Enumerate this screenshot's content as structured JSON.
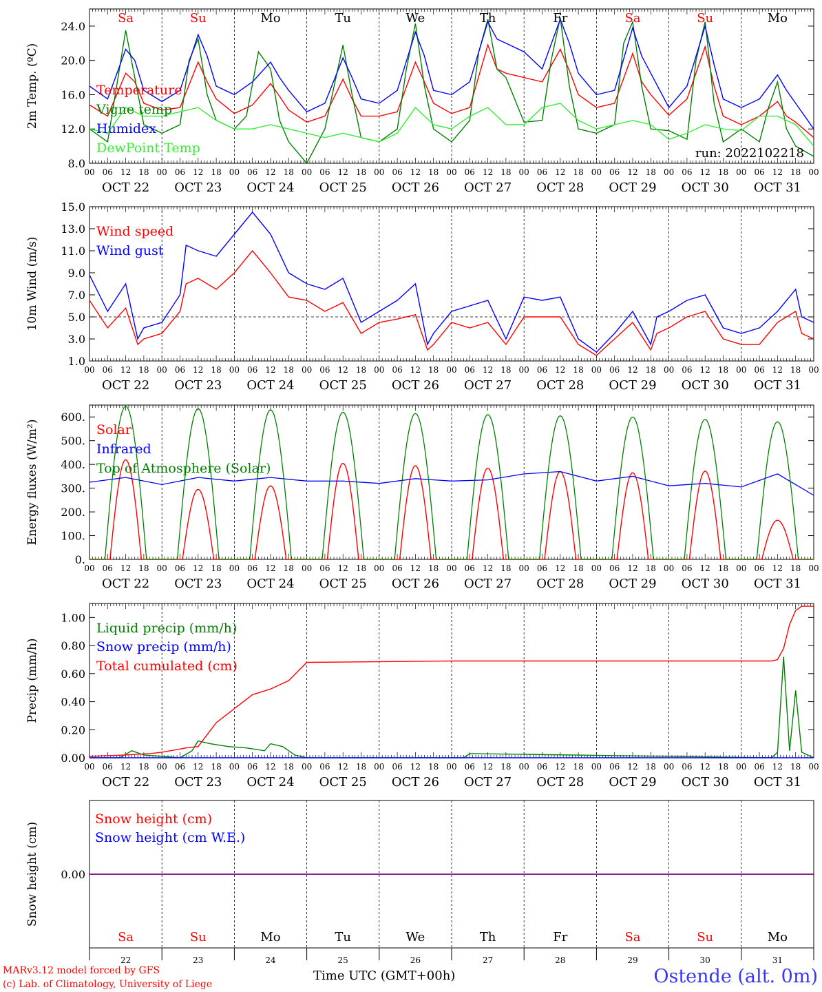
{
  "footer": {
    "model_line": "MARv3.12 model forced by GFS",
    "credit_line": "(c) Lab. of Climatology, University of Liege",
    "time_label": "Time UTC (GMT+00h)",
    "station": "Ostende (alt. 0m)"
  },
  "colors": {
    "red": "#ff0000",
    "green": "#008000",
    "blue": "#0000ff",
    "lightgreen": "#33ee33",
    "purple": "#800080"
  },
  "days": [
    "Sa",
    "Su",
    "Mo",
    "Tu",
    "We",
    "Th",
    "Fr",
    "Sa",
    "Su",
    "Mo"
  ],
  "weekend_days": [
    0,
    1,
    7,
    8
  ],
  "dates": [
    "OCT 22",
    "OCT 23",
    "OCT 24",
    "OCT 25",
    "OCT 26",
    "OCT 27",
    "OCT 28",
    "OCT 29",
    "OCT 30",
    "OCT 31"
  ],
  "day_numbers": [
    "22",
    "23",
    "24",
    "25",
    "26",
    "27",
    "28",
    "29",
    "30",
    "31"
  ],
  "hour_labels": [
    "00",
    "06",
    "12",
    "18"
  ],
  "chart_data": [
    {
      "type": "line",
      "ylabel": "2m Temp. (ºC)",
      "ylim": [
        8,
        26
      ],
      "yticks": [
        "8.0",
        "12.0",
        "16.0",
        "20.0",
        "24.0"
      ],
      "annotation": "run: 2022102218",
      "x_unit": "hours since 2022-10-22 00 UTC",
      "series": [
        {
          "name": "Temperature",
          "color": "#ff0000",
          "x": [
            0,
            6,
            12,
            15,
            18,
            24,
            30,
            36,
            39,
            42,
            48,
            54,
            60,
            63,
            66,
            72,
            78,
            84,
            87,
            90,
            96,
            102,
            108,
            111,
            114,
            120,
            126,
            132,
            135,
            138,
            144,
            150,
            156,
            159,
            162,
            168,
            174,
            180,
            183,
            186,
            192,
            198,
            204,
            207,
            210,
            216,
            222,
            228,
            231,
            234,
            240
          ],
          "y": [
            14.8,
            13.5,
            18.5,
            17.5,
            15.0,
            14.2,
            14.5,
            19.8,
            17.5,
            15.5,
            13.8,
            14.8,
            17.3,
            15.8,
            14.2,
            12.8,
            13.5,
            17.8,
            15.5,
            13.5,
            13.5,
            14.0,
            19.8,
            17.5,
            15.0,
            13.8,
            14.5,
            21.8,
            19.0,
            18.5,
            18.0,
            17.5,
            21.3,
            18.8,
            16.0,
            14.5,
            15.0,
            20.8,
            17.5,
            16.0,
            13.6,
            15.5,
            21.6,
            17.0,
            13.5,
            12.5,
            13.5,
            15.2,
            13.5,
            12.8,
            11.0
          ]
        },
        {
          "name": "Vigne temp",
          "color": "#008000",
          "x": [
            0,
            6,
            9,
            12,
            15,
            18,
            24,
            30,
            33,
            36,
            39,
            42,
            48,
            52,
            56,
            60,
            63,
            66,
            72,
            78,
            84,
            87,
            90,
            96,
            102,
            105,
            108,
            111,
            114,
            120,
            126,
            129,
            132,
            135,
            138,
            144,
            150,
            153,
            156,
            159,
            162,
            168,
            174,
            177,
            180,
            183,
            186,
            192,
            198,
            201,
            204,
            207,
            210,
            216,
            222,
            225,
            228,
            231,
            234,
            240
          ],
          "y": [
            12.0,
            10.5,
            17.0,
            23.5,
            18.0,
            12.5,
            11.5,
            12.5,
            20.0,
            22.5,
            16.0,
            13.0,
            12.0,
            13.5,
            21.0,
            19.0,
            13.0,
            10.5,
            8.0,
            12.0,
            21.8,
            16.0,
            11.0,
            10.5,
            12.0,
            19.0,
            24.3,
            17.0,
            12.0,
            10.5,
            13.0,
            21.0,
            24.8,
            19.0,
            18.0,
            12.8,
            13.0,
            20.0,
            25.0,
            17.0,
            12.0,
            11.5,
            12.5,
            22.0,
            24.5,
            17.0,
            12.0,
            11.8,
            10.8,
            20.0,
            24.5,
            15.0,
            10.5,
            12.0,
            10.5,
            14.5,
            17.5,
            12.0,
            10.0,
            8.8
          ]
        },
        {
          "name": "Humidex",
          "color": "#0000ff",
          "x": [
            0,
            6,
            12,
            15,
            18,
            24,
            30,
            36,
            39,
            42,
            48,
            54,
            60,
            63,
            66,
            72,
            78,
            84,
            87,
            90,
            96,
            102,
            108,
            111,
            114,
            120,
            126,
            132,
            135,
            138,
            144,
            150,
            156,
            159,
            162,
            168,
            174,
            180,
            183,
            186,
            192,
            198,
            204,
            207,
            210,
            216,
            222,
            228,
            231,
            234,
            240
          ],
          "y": [
            17.0,
            15.5,
            21.3,
            20.0,
            16.5,
            15.2,
            16.5,
            23.0,
            20.5,
            17.0,
            16.0,
            17.5,
            19.8,
            18.0,
            16.5,
            14.0,
            15.0,
            20.3,
            18.0,
            15.5,
            15.0,
            16.5,
            23.3,
            20.5,
            16.5,
            16.0,
            17.5,
            24.5,
            22.5,
            22.0,
            21.0,
            19.0,
            24.8,
            22.0,
            18.5,
            16.0,
            16.5,
            23.8,
            20.5,
            18.5,
            14.5,
            17.0,
            24.0,
            19.5,
            15.5,
            14.5,
            15.5,
            18.3,
            16.5,
            15.0,
            12.0
          ]
        },
        {
          "name": "DewPoint Temp",
          "color": "#33ee33",
          "x": [
            0,
            6,
            12,
            18,
            24,
            30,
            36,
            42,
            48,
            54,
            60,
            66,
            72,
            78,
            84,
            90,
            96,
            102,
            108,
            114,
            120,
            126,
            132,
            138,
            144,
            150,
            156,
            162,
            168,
            174,
            180,
            186,
            192,
            198,
            204,
            210,
            216,
            222,
            228,
            234,
            240
          ],
          "y": [
            12.0,
            11.5,
            14.5,
            13.5,
            13.5,
            14.0,
            14.5,
            13.0,
            12.0,
            12.0,
            12.5,
            12.0,
            11.5,
            11.0,
            11.5,
            11.0,
            10.5,
            11.5,
            14.5,
            12.5,
            12.0,
            13.5,
            14.5,
            12.5,
            12.5,
            14.5,
            15.0,
            13.0,
            12.0,
            12.5,
            13.0,
            12.5,
            10.8,
            11.5,
            12.5,
            12.0,
            11.8,
            13.5,
            13.5,
            12.5,
            10.0
          ]
        }
      ]
    },
    {
      "type": "line",
      "ylabel": "10m Wind (m/s)",
      "ylim": [
        1,
        15
      ],
      "yticks": [
        "1.0",
        "3.0",
        "5.0",
        "7.0",
        "9.0",
        "11.0",
        "13.0",
        "15.0"
      ],
      "reference_line": 5.0,
      "x_unit": "hours since 2022-10-22 00 UTC",
      "series": [
        {
          "name": "Wind speed",
          "color": "#ff0000",
          "x": [
            0,
            6,
            12,
            16,
            18,
            24,
            30,
            32,
            36,
            42,
            48,
            54,
            60,
            66,
            72,
            78,
            84,
            90,
            96,
            102,
            108,
            112,
            114,
            120,
            126,
            132,
            138,
            144,
            150,
            156,
            162,
            168,
            174,
            180,
            186,
            188,
            192,
            198,
            204,
            210,
            216,
            222,
            228,
            234,
            236,
            240
          ],
          "y": [
            6.5,
            4.0,
            5.8,
            2.5,
            3.0,
            3.5,
            5.5,
            8.0,
            8.5,
            7.5,
            9.0,
            11.0,
            9.0,
            6.8,
            6.5,
            5.5,
            6.3,
            3.5,
            4.5,
            4.8,
            5.2,
            2.0,
            2.5,
            4.5,
            4.0,
            4.5,
            2.5,
            5.0,
            5.0,
            5.0,
            2.5,
            1.5,
            3.0,
            4.5,
            2.0,
            3.5,
            4.0,
            5.0,
            5.5,
            3.0,
            2.5,
            2.5,
            4.5,
            5.5,
            3.5,
            3.0
          ]
        },
        {
          "name": "Wind gust",
          "color": "#0000ff",
          "x": [
            0,
            6,
            12,
            16,
            18,
            24,
            30,
            32,
            36,
            42,
            48,
            54,
            60,
            66,
            72,
            78,
            84,
            90,
            96,
            102,
            108,
            112,
            114,
            120,
            126,
            132,
            138,
            144,
            150,
            156,
            162,
            168,
            174,
            180,
            186,
            188,
            192,
            198,
            204,
            210,
            216,
            222,
            228,
            234,
            236,
            240
          ],
          "y": [
            8.8,
            5.5,
            8.0,
            3.0,
            4.0,
            4.5,
            7.0,
            11.5,
            11.0,
            10.5,
            12.5,
            14.5,
            12.5,
            9.0,
            8.0,
            7.5,
            8.5,
            4.5,
            5.5,
            6.5,
            8.0,
            2.5,
            3.5,
            5.5,
            6.0,
            6.5,
            3.0,
            6.8,
            6.5,
            6.8,
            3.0,
            1.8,
            3.5,
            5.5,
            2.5,
            5.0,
            5.5,
            6.5,
            7.0,
            4.0,
            3.5,
            4.0,
            5.5,
            7.5,
            5.0,
            4.5
          ]
        }
      ]
    },
    {
      "type": "line",
      "ylabel": "Energy fluxes (W/m²)",
      "ylim": [
        0,
        650
      ],
      "yticks": [
        "0.",
        "100.",
        "200.",
        "300.",
        "400.",
        "500.",
        "600."
      ],
      "x_unit": "hours since 2022-10-22 00 UTC",
      "daily_peak_hour": 12,
      "series": [
        {
          "name": "Solar",
          "color": "#ff0000",
          "daily_peaks": [
            420,
            295,
            310,
            405,
            395,
            385,
            370,
            365,
            372,
            165
          ]
        },
        {
          "name": "Infrared",
          "color": "#0000ff",
          "x": [
            0,
            12,
            24,
            36,
            48,
            60,
            72,
            84,
            96,
            108,
            120,
            132,
            144,
            156,
            168,
            180,
            192,
            204,
            216,
            228,
            240
          ],
          "y": [
            325,
            345,
            315,
            345,
            330,
            345,
            330,
            330,
            320,
            340,
            330,
            335,
            360,
            370,
            330,
            350,
            310,
            320,
            305,
            360,
            270
          ]
        },
        {
          "name": "Top of Atmosphere (Solar)",
          "color": "#008000",
          "daily_peaks": [
            645,
            635,
            630,
            620,
            615,
            610,
            605,
            600,
            590,
            580
          ]
        }
      ]
    },
    {
      "type": "line",
      "ylabel": "Precip (mm/h)",
      "ylim": [
        0,
        1.1
      ],
      "yticks": [
        "0.00",
        "0.20",
        "0.40",
        "0.60",
        "0.80",
        "1.00"
      ],
      "x_unit": "hours since 2022-10-22 00 UTC",
      "series": [
        {
          "name": "Liquid precip (mm/h)",
          "color": "#008000",
          "x": [
            0,
            10,
            14,
            18,
            30,
            34,
            36,
            40,
            46,
            52,
            58,
            60,
            64,
            68,
            72,
            74,
            124,
            126,
            226,
            228,
            230,
            232,
            234,
            236,
            240
          ],
          "y": [
            0,
            0,
            0.05,
            0.02,
            0,
            0.05,
            0.12,
            0.1,
            0.08,
            0.07,
            0.05,
            0.1,
            0.08,
            0.02,
            0,
            0,
            0,
            0.03,
            0,
            0.04,
            0.72,
            0.05,
            0.48,
            0.04,
            0
          ]
        },
        {
          "name": "Snow precip (mm/h)",
          "color": "#0000ff",
          "x": [
            0,
            240
          ],
          "y": [
            0,
            0
          ]
        },
        {
          "name": "Total cumulated (cm)",
          "color": "#ff0000",
          "x": [
            0,
            12,
            20,
            24,
            32,
            36,
            42,
            48,
            54,
            60,
            66,
            72,
            120,
            240,
            226,
            228,
            230,
            232,
            234,
            236,
            240
          ],
          "y": [
            0.01,
            0.02,
            0.03,
            0.04,
            0.07,
            0.08,
            0.25,
            0.35,
            0.45,
            0.49,
            0.55,
            0.68,
            0.69,
            0.69,
            0.69,
            0.7,
            0.78,
            0.95,
            1.05,
            1.08,
            1.08
          ]
        }
      ]
    },
    {
      "type": "line",
      "ylabel": "Snow height (cm)",
      "yticks": [
        "0.00"
      ],
      "x_unit": "hours since 2022-10-22 00 UTC",
      "series": [
        {
          "name": "Snow height (cm)",
          "color": "#ff0000",
          "x": [
            0,
            240
          ],
          "y": [
            0,
            0
          ]
        },
        {
          "name": "Snow height (cm W.E.)",
          "color": "#0000ff",
          "x": [
            0,
            240
          ],
          "y": [
            0,
            0
          ]
        }
      ]
    }
  ]
}
